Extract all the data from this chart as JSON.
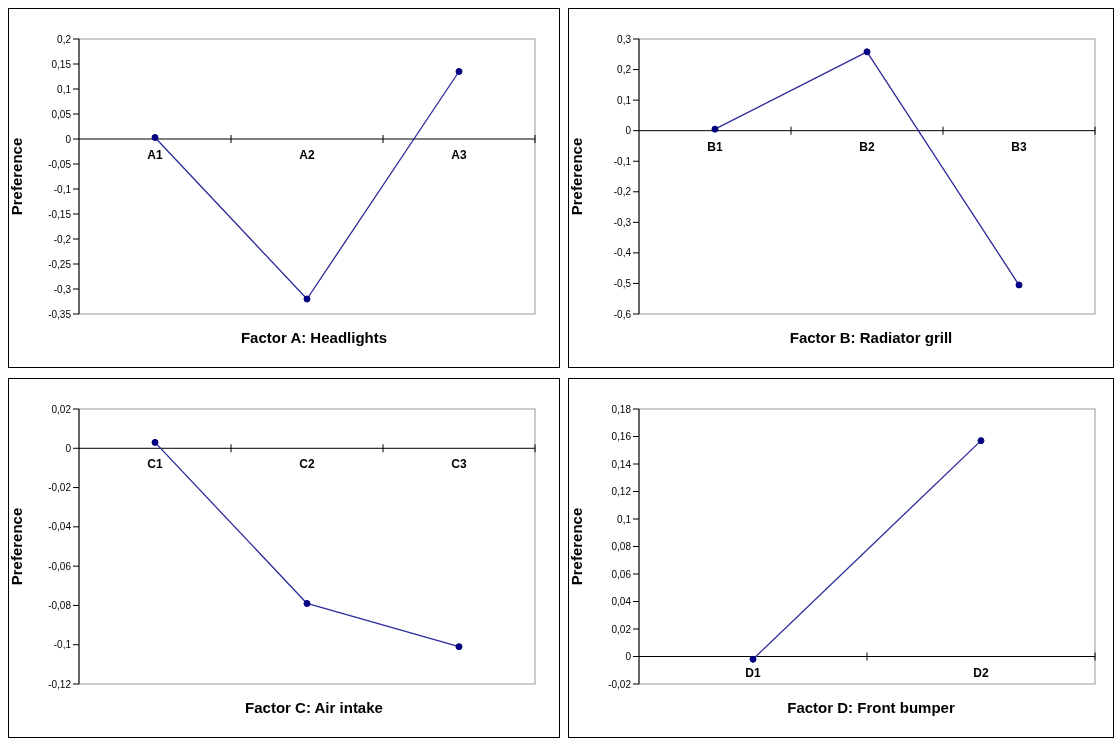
{
  "chart_data": [
    {
      "type": "line",
      "xlabel": "Factor A: Headlights",
      "ylabel": "Preference",
      "categories": [
        "A1",
        "A2",
        "A3"
      ],
      "series": [
        {
          "color": "#2b2b9a",
          "values": [
            0.003,
            -0.32,
            0.135
          ]
        }
      ],
      "ylim": [
        -0.35,
        0.2
      ],
      "yticks": [
        {
          "value": -0.35,
          "label": "-0,35"
        },
        {
          "value": -0.3,
          "label": "-0,3"
        },
        {
          "value": -0.25,
          "label": "-0,25"
        },
        {
          "value": -0.2,
          "label": "-0,2"
        },
        {
          "value": -0.15,
          "label": "-0,15"
        },
        {
          "value": -0.1,
          "label": "-0,1"
        },
        {
          "value": -0.05,
          "label": "-0,05"
        },
        {
          "value": 0,
          "label": "0"
        },
        {
          "value": 0.05,
          "label": "0,05"
        },
        {
          "value": 0.1,
          "label": "0,1"
        },
        {
          "value": 0.15,
          "label": "0,15"
        },
        {
          "value": 0.2,
          "label": "0,2"
        }
      ],
      "marker": "circle",
      "grid": false,
      "legend": false
    },
    {
      "type": "line",
      "xlabel": "Factor B: Radiator grill",
      "ylabel": "Preference",
      "categories": [
        "B1",
        "B2",
        "B3"
      ],
      "series": [
        {
          "color": "#2b2b9a",
          "values": [
            0.005,
            0.258,
            -0.505
          ]
        }
      ],
      "ylim": [
        -0.6,
        0.3
      ],
      "yticks": [
        {
          "value": -0.6,
          "label": "-0,6"
        },
        {
          "value": -0.5,
          "label": "-0,5"
        },
        {
          "value": -0.4,
          "label": "-0,4"
        },
        {
          "value": -0.3,
          "label": "-0,3"
        },
        {
          "value": -0.2,
          "label": "-0,2"
        },
        {
          "value": -0.1,
          "label": "-0,1"
        },
        {
          "value": 0,
          "label": "0"
        },
        {
          "value": 0.1,
          "label": "0,1"
        },
        {
          "value": 0.2,
          "label": "0,2"
        },
        {
          "value": 0.3,
          "label": "0,3"
        }
      ],
      "marker": "circle",
      "grid": false,
      "legend": false
    },
    {
      "type": "line",
      "xlabel": "Factor C: Air intake",
      "ylabel": "Preference",
      "categories": [
        "C1",
        "C2",
        "C3"
      ],
      "series": [
        {
          "color": "#2b2b9a",
          "values": [
            0.003,
            -0.079,
            -0.101
          ]
        }
      ],
      "ylim": [
        -0.12,
        0.02
      ],
      "yticks": [
        {
          "value": -0.12,
          "label": "-0,12"
        },
        {
          "value": -0.1,
          "label": "-0,1"
        },
        {
          "value": -0.08,
          "label": "-0,08"
        },
        {
          "value": -0.06,
          "label": "-0,06"
        },
        {
          "value": -0.04,
          "label": "-0,04"
        },
        {
          "value": -0.02,
          "label": "-0,02"
        },
        {
          "value": 0,
          "label": "0"
        },
        {
          "value": 0.02,
          "label": "0,02"
        }
      ],
      "marker": "circle",
      "grid": false,
      "legend": false
    },
    {
      "type": "line",
      "xlabel": "Factor D: Front bumper",
      "ylabel": "Preference",
      "categories": [
        "D1",
        "D2"
      ],
      "series": [
        {
          "color": "#2b2b9a",
          "values": [
            -0.002,
            0.157
          ]
        }
      ],
      "ylim": [
        -0.02,
        0.18
      ],
      "yticks": [
        {
          "value": -0.02,
          "label": "-0,02"
        },
        {
          "value": 0,
          "label": "0"
        },
        {
          "value": 0.02,
          "label": "0,02"
        },
        {
          "value": 0.04,
          "label": "0,04"
        },
        {
          "value": 0.06,
          "label": "0,06"
        },
        {
          "value": 0.08,
          "label": "0,08"
        },
        {
          "value": 0.1,
          "label": "0,1"
        },
        {
          "value": 0.12,
          "label": "0,12"
        },
        {
          "value": 0.14,
          "label": "0,14"
        },
        {
          "value": 0.16,
          "label": "0,16"
        },
        {
          "value": 0.18,
          "label": "0,18"
        }
      ],
      "marker": "circle",
      "legend": false
    }
  ]
}
